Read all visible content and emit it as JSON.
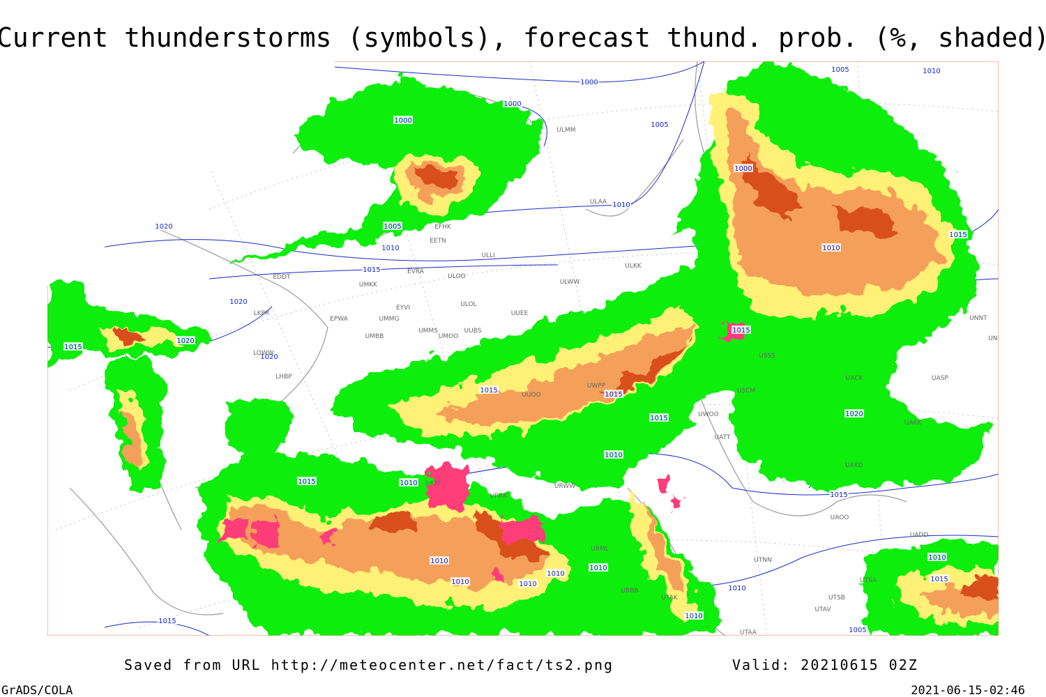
{
  "title": "Current thunderstorms (symbols), forecast thund. prob. (%, shaded)",
  "footer": {
    "source": "Saved from URL http://meteocenter.net/fact/ts2.png",
    "valid": "Valid: 20210615 02Z",
    "software": "GrADS/COLA",
    "timestamp": "2021-06-15-02:46"
  },
  "isobar_labels": [
    "1000",
    "1000",
    "1000",
    "1005",
    "1005",
    "1010",
    "1000",
    "1010",
    "1005",
    "1010",
    "1020",
    "1015",
    "1020",
    "1015",
    "1020",
    "1020",
    "1010",
    "1015",
    "1015",
    "1015",
    "1015",
    "1015",
    "1020",
    "1010",
    "1015",
    "1010",
    "1015",
    "1010",
    "1010",
    "1010",
    "1010",
    "1010",
    "1010",
    "1010",
    "1015",
    "1005",
    "1010",
    "1015"
  ],
  "station_labels": [
    "ULMM",
    "ULAA",
    "EFHK",
    "EETN",
    "ULLI",
    "EVRA",
    "ULOO",
    "EDDT",
    "UMKK",
    "ULWW",
    "ULKK",
    "EYVI",
    "ULOL",
    "EPWA",
    "UMMG",
    "UUEE",
    "UMMS",
    "UUBS",
    "UMOO",
    "UMBB",
    "UNNT",
    "UNBB",
    "UASP",
    "UACK",
    "LKPR",
    "LOWW",
    "LHBP",
    "UWOO",
    "UATT",
    "USCM",
    "UAKK",
    "UAKD",
    "UAOO",
    "UTNN",
    "UTAA",
    "UTAK",
    "UBBB",
    "URML",
    "URWW",
    "URKK",
    "UKFF",
    "UUOO",
    "UWPP",
    "USSS",
    "UADD",
    "UTSA",
    "UTSB",
    "UTAV"
  ]
}
